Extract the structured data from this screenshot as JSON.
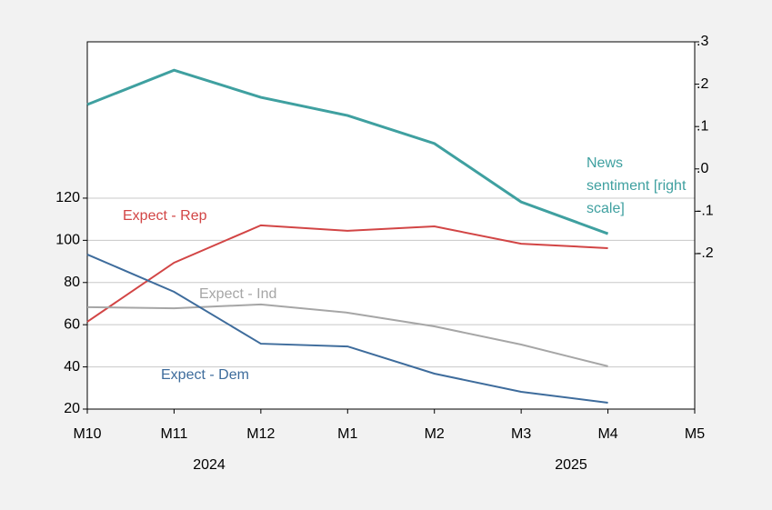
{
  "chart_data": {
    "type": "line",
    "categories": [
      "M10",
      "M11",
      "M12",
      "M1",
      "M2",
      "M3",
      "M4",
      "M5"
    ],
    "x_groups": [
      "2024",
      "2025"
    ],
    "series": [
      {
        "name": "Expect - Rep",
        "color": "#d24545",
        "values": [
          61.4,
          89.4,
          107.1,
          104.5,
          106.6,
          98.4,
          96.3,
          null
        ]
      },
      {
        "name": "Expect - Ind",
        "color": "#a6a6a6",
        "values": [
          68.3,
          67.8,
          69.6,
          65.7,
          59.2,
          50.6,
          40.3,
          null
        ]
      },
      {
        "name": "Expect - Dem",
        "color": "#3e6c9c",
        "values": [
          93.3,
          75.6,
          51.0,
          49.7,
          36.8,
          28.2,
          23.0,
          null
        ]
      },
      {
        "name": "News sentiment [right scale]",
        "color": "#3fa0a0",
        "axis": "y2",
        "values": [
          0.152,
          0.233,
          0.169,
          0.126,
          0.06,
          -0.078,
          -0.153,
          null
        ]
      }
    ],
    "ylim": [
      20,
      194.1
    ],
    "yticks": [
      20,
      40,
      60,
      80,
      100,
      120
    ],
    "y2lim": [
      -0.567,
      0.3
    ],
    "y2ticks": [
      {
        "value": 0.3,
        "label": ".3"
      },
      {
        "value": 0.2,
        "label": ".2"
      },
      {
        "value": 0.1,
        "label": ".1"
      },
      {
        "value": 0,
        "label": ".0"
      },
      {
        "value": -0.1,
        "label": "-.1"
      },
      {
        "value": -0.2,
        "label": "-.2"
      }
    ],
    "grid": true
  }
}
